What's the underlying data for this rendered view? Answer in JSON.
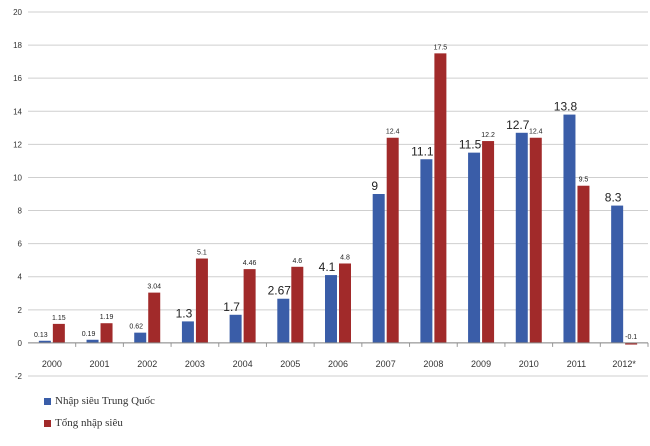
{
  "chart_data": {
    "type": "bar",
    "title": "",
    "xlabel": "",
    "ylabel": "",
    "ylim": [
      -2,
      20
    ],
    "yticks": [
      -2,
      0,
      2,
      4,
      6,
      8,
      10,
      12,
      14,
      16,
      18,
      20
    ],
    "grid": true,
    "legend_position": "bottom-left",
    "categories": [
      "2000",
      "2001",
      "2002",
      "2003",
      "2004",
      "2005",
      "2006",
      "2007",
      "2008",
      "2009",
      "2010",
      "2011",
      "2012*"
    ],
    "series": [
      {
        "name": "Nhập siêu Trung Quốc",
        "color": "#3a5da8",
        "values": [
          0.13,
          0.19,
          0.62,
          1.3,
          1.7,
          2.67,
          4.1,
          9,
          11.1,
          11.5,
          12.7,
          13.8,
          8.3
        ],
        "labels": [
          "0.13",
          "0.19",
          "0.62",
          "1.3",
          "1.7",
          "2.67",
          "4.1",
          "9",
          "11.1",
          "11.5",
          "12.7",
          "13.8",
          "8.3"
        ]
      },
      {
        "name": "Tổng nhập siêu",
        "color": "#a12a2a",
        "values": [
          1.15,
          1.19,
          3.04,
          5.1,
          4.46,
          4.6,
          4.8,
          12.4,
          17.5,
          12.2,
          12.4,
          9.5,
          -0.1
        ],
        "labels": [
          "1.15",
          "1.19",
          "3.04",
          "5.1",
          "4.46",
          "4.6",
          "4.8",
          "12.4",
          "17.5",
          "12.2",
          "12.4",
          "9.5",
          "-0.1"
        ]
      }
    ]
  }
}
